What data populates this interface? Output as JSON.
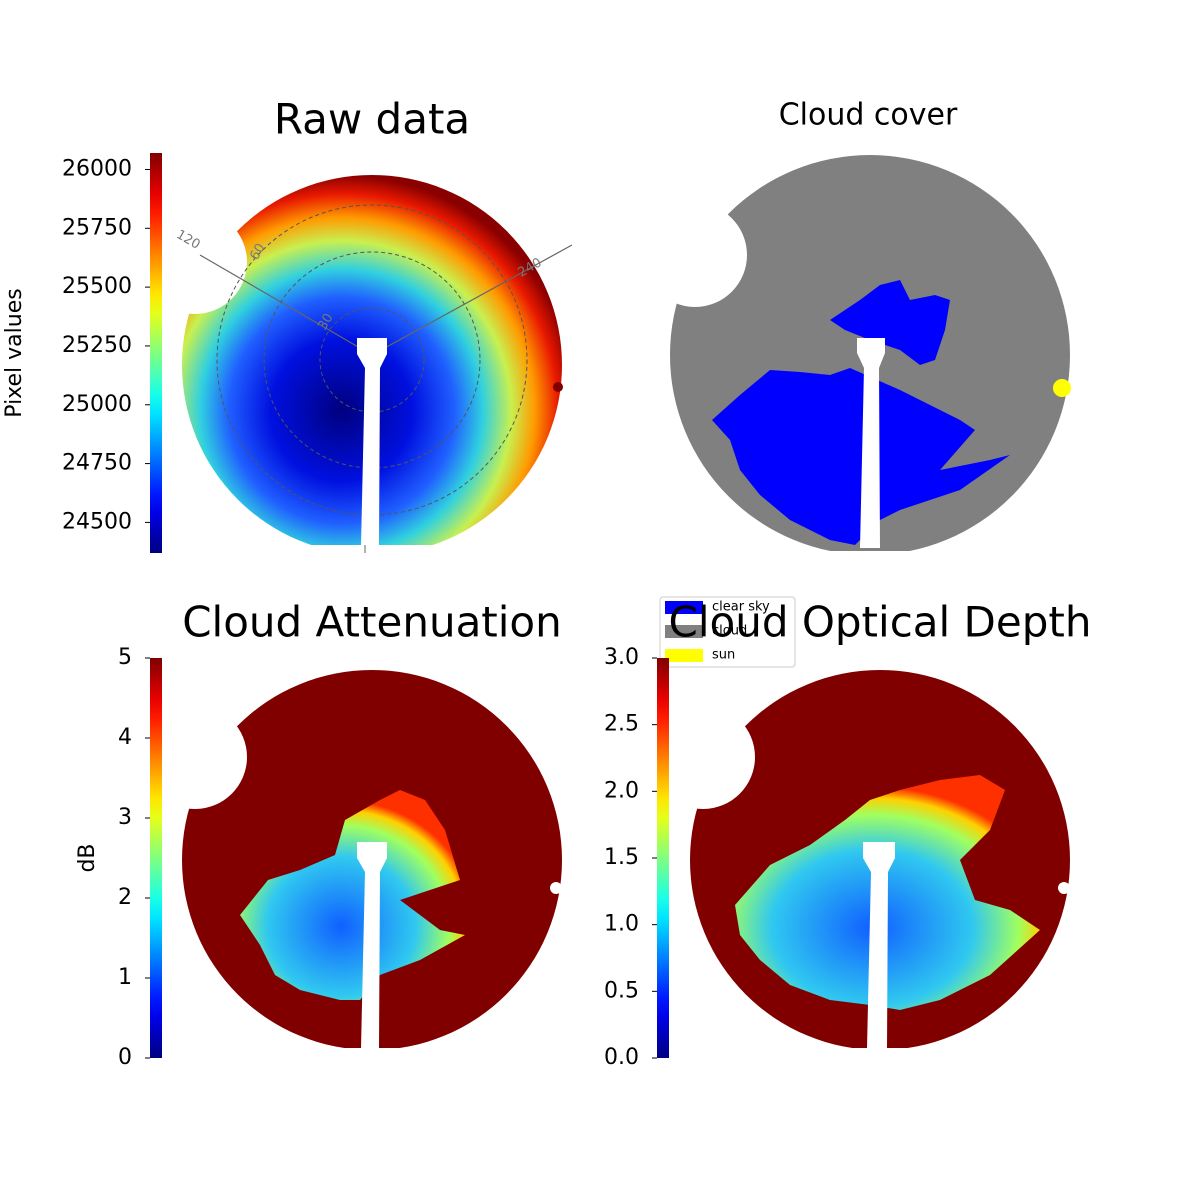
{
  "chart_data": [
    {
      "type": "image",
      "title": "Raw data",
      "colormap": "jet",
      "polar_labels": [
        "120",
        "60",
        "30",
        "240"
      ],
      "colorbar": {
        "label": "Pixel values",
        "lim": [
          24370,
          26070
        ],
        "ticks": [
          24500,
          24750,
          25000,
          25250,
          25500,
          25750,
          26000
        ]
      }
    },
    {
      "type": "image",
      "title": "Cloud cover",
      "legend": [
        {
          "name": "clear sky",
          "color": "#0000ff"
        },
        {
          "name": "cloud",
          "color": "#808080"
        },
        {
          "name": "sun",
          "color": "#ffff00"
        }
      ]
    },
    {
      "type": "image",
      "title": "Cloud Attenuation",
      "colormap": "jet",
      "colorbar": {
        "label": "dB",
        "lim": [
          0,
          5
        ],
        "ticks": [
          0,
          1,
          2,
          3,
          4,
          5
        ]
      }
    },
    {
      "type": "image",
      "title": "Cloud Optical Depth",
      "colormap": "jet",
      "colorbar": {
        "lim": [
          0,
          3
        ],
        "ticks": [
          {
            "value": 0,
            "label": "0.0"
          },
          {
            "value": 0.5,
            "label": "0.5"
          },
          {
            "value": 1,
            "label": "1.0"
          },
          {
            "value": 1.5,
            "label": "1.5"
          },
          {
            "value": 2,
            "label": "2.0"
          },
          {
            "value": 2.5,
            "label": "2.5"
          },
          {
            "value": 3,
            "label": "3.0"
          }
        ]
      }
    }
  ]
}
